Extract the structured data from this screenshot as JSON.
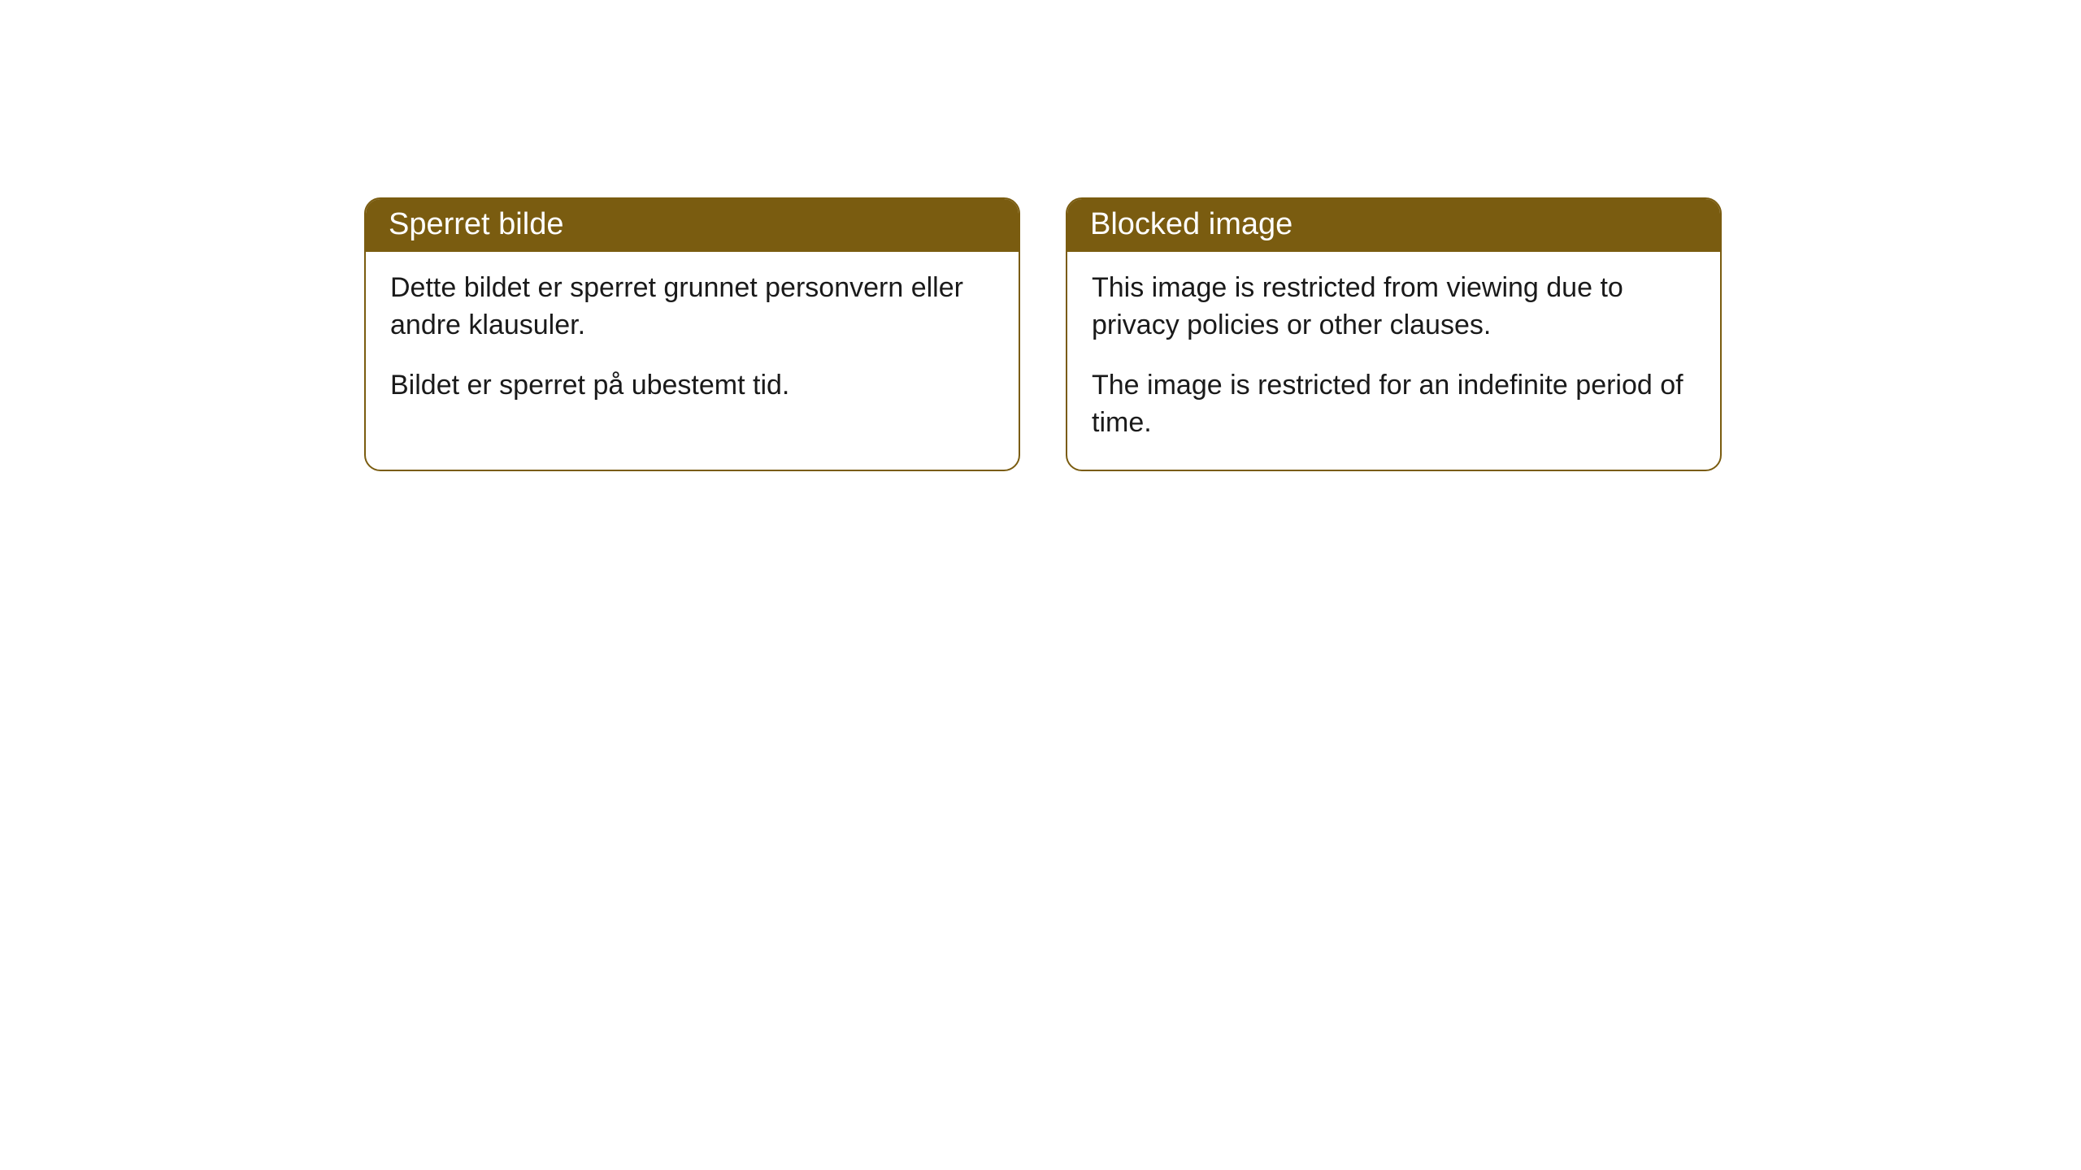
{
  "cards": [
    {
      "title": "Sperret bilde",
      "para1": "Dette bildet er sperret grunnet personvern eller andre klausuler.",
      "para2": "Bildet er sperret på ubestemt tid."
    },
    {
      "title": "Blocked image",
      "para1": "This image is restricted from viewing due to privacy policies or other clauses.",
      "para2": "The image is restricted for an indefinite period of time."
    }
  ],
  "style": {
    "header_bg": "#7a5c10",
    "header_text_color": "#ffffff",
    "body_text_color": "#1a1a1a",
    "card_border_color": "#7a5c10",
    "card_bg": "#ffffff",
    "page_bg": "#ffffff",
    "header_fontsize": 38,
    "body_fontsize": 34,
    "border_radius": 20
  }
}
